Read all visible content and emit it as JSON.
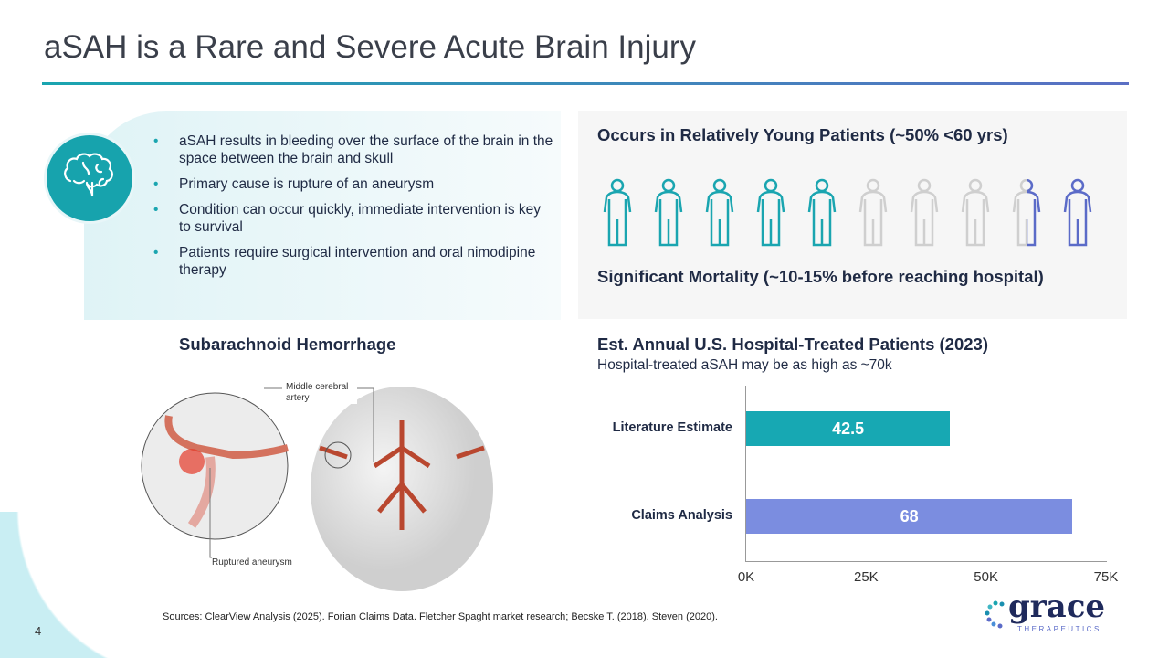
{
  "title": "aSAH is a Rare and Severe Acute Brain Injury",
  "bullets": [
    "aSAH results in bleeding over the surface of the brain in the space between the brain and skull",
    "Primary cause is rupture of an aneurysm",
    "Condition can occur quickly, immediate intervention is key to survival",
    "Patients require surgical intervention and oral nimodipine therapy"
  ],
  "young": {
    "heading": "Occurs in Relatively Young Patients (~50% <60 yrs)",
    "figures": [
      "teal",
      "teal",
      "teal",
      "teal",
      "teal",
      "grey",
      "grey",
      "grey",
      "half",
      "blue"
    ]
  },
  "mortality": "Significant Mortality (~10-15% before reaching hospital)",
  "illustration": {
    "heading": "Subarachnoid Hemorrhage",
    "label_artery": "Middle cerebral artery",
    "label_aneurysm": "Ruptured aneurysm"
  },
  "chart_heading": "Est. Annual U.S. Hospital-Treated Patients (2023)",
  "chart_subheading": "Hospital-treated aSAH may be as high as ~70k",
  "chart_data": {
    "type": "bar",
    "orientation": "horizontal",
    "categories": [
      "Literature Estimate",
      "Claims Analysis"
    ],
    "values": [
      42.5,
      68
    ],
    "data_labels": [
      "42.5",
      "68"
    ],
    "unit": "K",
    "xlim": [
      0,
      75
    ],
    "xticks": [
      "0K",
      "25K",
      "50K",
      "75K"
    ],
    "colors": [
      "#17a8b3",
      "#7b8de0"
    ],
    "grid": false
  },
  "sources": "Sources: ClearView Analysis (2025). Forian Claims Data. Fletcher Spaght market research; Becske T. (2018). Steven (2020).",
  "page_number": "4",
  "logo": {
    "name": "grace",
    "tagline": "THERAPEUTICS"
  },
  "colors": {
    "teal": "#1aa5b0",
    "blue": "#5b6bc8",
    "grey": "#cfcfcf",
    "navy": "#1f2a5c"
  }
}
